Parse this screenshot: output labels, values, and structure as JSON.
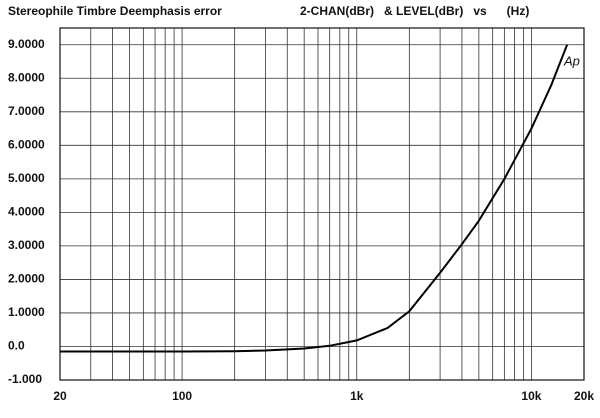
{
  "chart_data": {
    "type": "line",
    "title": "Stereophile  Timbre Deemphasis error",
    "subtitle": "2-CHAN(dBr)   & LEVEL(dBr)   vs      (Hz)",
    "logo": "Ap",
    "x": [
      20,
      50,
      100,
      200,
      300,
      500,
      700,
      1000,
      1500,
      2000,
      3000,
      4000,
      5000,
      7000,
      10000,
      13000,
      16000
    ],
    "values": [
      -0.15,
      -0.15,
      -0.15,
      -0.14,
      -0.12,
      -0.06,
      0.02,
      0.18,
      0.55,
      1.05,
      2.2,
      3.05,
      3.75,
      5.0,
      6.5,
      7.8,
      9.0
    ],
    "color": "#000000",
    "xlog": true,
    "xlim": [
      20,
      20000
    ],
    "ylim": [
      -1,
      9.5
    ],
    "xticks": [
      20,
      100,
      {
        "value": 1000,
        "label": "1k"
      },
      {
        "value": 10000,
        "label": "10k"
      },
      {
        "value": 20000,
        "label": "20k"
      }
    ],
    "xminor": [
      30,
      40,
      50,
      60,
      70,
      80,
      90,
      200,
      300,
      400,
      500,
      600,
      700,
      800,
      900,
      2000,
      3000,
      4000,
      5000,
      6000,
      7000,
      8000,
      9000
    ],
    "yticks": [
      {
        "value": 9,
        "label": "9.0000"
      },
      {
        "value": 8,
        "label": "8.0000"
      },
      {
        "value": 7,
        "label": "7.0000"
      },
      {
        "value": 6,
        "label": "6.0000"
      },
      {
        "value": 5,
        "label": "5.0000"
      },
      {
        "value": 4,
        "label": "4.0000"
      },
      {
        "value": 3,
        "label": "3.0000"
      },
      {
        "value": 2,
        "label": "2.0000"
      },
      {
        "value": 1,
        "label": "1.0000"
      },
      {
        "value": 0,
        "label": "0.0"
      },
      {
        "value": -1,
        "label": "-1.000"
      }
    ],
    "grid": true
  }
}
